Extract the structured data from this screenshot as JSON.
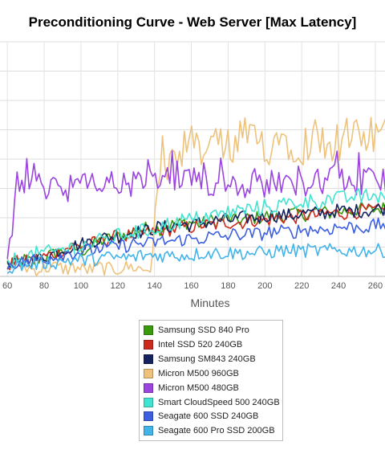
{
  "chart_data": {
    "type": "line",
    "title": "Preconditioning Curve - Web Server [Max Latency]",
    "xlabel": "Minutes",
    "ylabel": "",
    "x_ticks": [
      60,
      80,
      100,
      120,
      140,
      160,
      180,
      200,
      220,
      240,
      260,
      280
    ],
    "xlim": [
      56,
      284
    ],
    "ylim": [
      0,
      100
    ],
    "grid": true,
    "legend_position": "bottom",
    "series": [
      {
        "name": "Samsung SSD 840 Pro",
        "color": "#3a9a0e",
        "start": 60,
        "end": 284,
        "values": [
          5,
          6,
          7,
          6,
          8,
          9,
          10,
          11,
          12,
          11,
          13,
          15,
          16,
          17,
          18,
          19,
          20,
          21,
          20,
          22,
          22,
          23,
          23,
          22,
          24,
          23,
          25,
          24,
          24,
          25,
          25,
          26,
          25,
          26,
          27,
          26,
          27,
          28,
          27,
          27,
          28,
          28,
          29,
          28,
          29,
          29,
          30,
          29,
          30,
          31
        ]
      },
      {
        "name": "Intel SSD 520 240GB",
        "color": "#cc2a1e",
        "start": 60,
        "end": 284,
        "values": [
          5,
          6,
          6,
          7,
          8,
          9,
          10,
          12,
          13,
          13,
          14,
          15,
          16,
          17,
          17,
          18,
          18,
          19,
          19,
          20,
          20,
          21,
          21,
          22,
          22,
          22,
          23,
          23,
          23,
          24,
          24,
          24,
          25,
          25,
          25,
          26,
          26,
          26,
          27,
          27,
          27,
          27,
          28,
          28,
          28,
          28,
          29,
          29,
          29,
          29
        ]
      },
      {
        "name": "Samsung SM843 240GB",
        "color": "#14235e",
        "start": 60,
        "end": 284,
        "values": [
          4,
          5,
          6,
          7,
          8,
          9,
          11,
          12,
          13,
          14,
          15,
          16,
          17,
          17,
          18,
          19,
          19,
          20,
          21,
          21,
          22,
          22,
          22,
          23,
          23,
          24,
          24,
          24,
          25,
          25,
          25,
          26,
          26,
          26,
          26,
          27,
          27,
          27,
          27,
          28,
          28,
          28,
          28,
          28,
          29,
          29,
          29,
          29,
          29,
          30
        ]
      },
      {
        "name": "Micron M500 960GB",
        "color": "#eec27a",
        "start": 60,
        "end": 284,
        "values": [
          6,
          5,
          4,
          3,
          3,
          4,
          4,
          3,
          4,
          3,
          3,
          4,
          3,
          3,
          4,
          4,
          3,
          3,
          35,
          38,
          45,
          50,
          52,
          48,
          52,
          55,
          50,
          52,
          56,
          54,
          53,
          52,
          56,
          55,
          54,
          52,
          55,
          57,
          54,
          53,
          56,
          55,
          54,
          57,
          55,
          56,
          54,
          53,
          55,
          54
        ]
      },
      {
        "name": "Micron M500 480GB",
        "color": "#9b44e0",
        "start": 60,
        "end": 284,
        "values": [
          6,
          35,
          36,
          40,
          38,
          39,
          40,
          37,
          41,
          38,
          40,
          39,
          41,
          38,
          40,
          39,
          41,
          40,
          39,
          42,
          38,
          40,
          41,
          39,
          40,
          38,
          42,
          40,
          39,
          41,
          40,
          39,
          42,
          38,
          40,
          41,
          39,
          40,
          42,
          38,
          41,
          40,
          39,
          41,
          40,
          42,
          39,
          41,
          40,
          41
        ]
      },
      {
        "name": "Smart CloudSpeed 500 240GB",
        "color": "#40e4d0",
        "start": 60,
        "end": 284,
        "values": [
          6,
          7,
          8,
          9,
          10,
          10,
          11,
          12,
          12,
          13,
          14,
          15,
          16,
          17,
          18,
          19,
          19,
          20,
          21,
          22,
          23,
          24,
          24,
          25,
          26,
          26,
          27,
          28,
          28,
          29,
          29,
          30,
          30,
          31,
          31,
          32,
          32,
          32,
          33,
          33,
          33,
          34,
          34,
          34,
          34,
          35,
          35,
          35,
          35,
          35
        ]
      },
      {
        "name": "Seagate 600 SSD 240GB",
        "color": "#3c5ee0",
        "start": 60,
        "end": 284,
        "values": [
          5,
          6,
          6,
          7,
          7,
          8,
          9,
          10,
          10,
          11,
          11,
          12,
          12,
          13,
          13,
          14,
          14,
          14,
          15,
          15,
          15,
          16,
          16,
          16,
          17,
          17,
          17,
          18,
          18,
          18,
          18,
          19,
          19,
          19,
          19,
          20,
          20,
          20,
          20,
          21,
          21,
          21,
          21,
          21,
          22,
          22,
          22,
          22,
          22,
          22
        ]
      },
      {
        "name": "Seagate 600 Pro SSD 200GB",
        "color": "#42b4ea",
        "start": 60,
        "end": 284,
        "values": [
          4,
          4,
          5,
          5,
          6,
          6,
          6,
          7,
          7,
          7,
          7,
          8,
          8,
          8,
          8,
          8,
          9,
          9,
          9,
          9,
          9,
          9,
          9,
          10,
          10,
          10,
          10,
          10,
          10,
          10,
          10,
          10,
          11,
          11,
          11,
          11,
          11,
          11,
          11,
          11,
          11,
          11,
          11,
          11,
          11,
          11,
          11,
          11,
          11,
          11
        ]
      }
    ]
  }
}
